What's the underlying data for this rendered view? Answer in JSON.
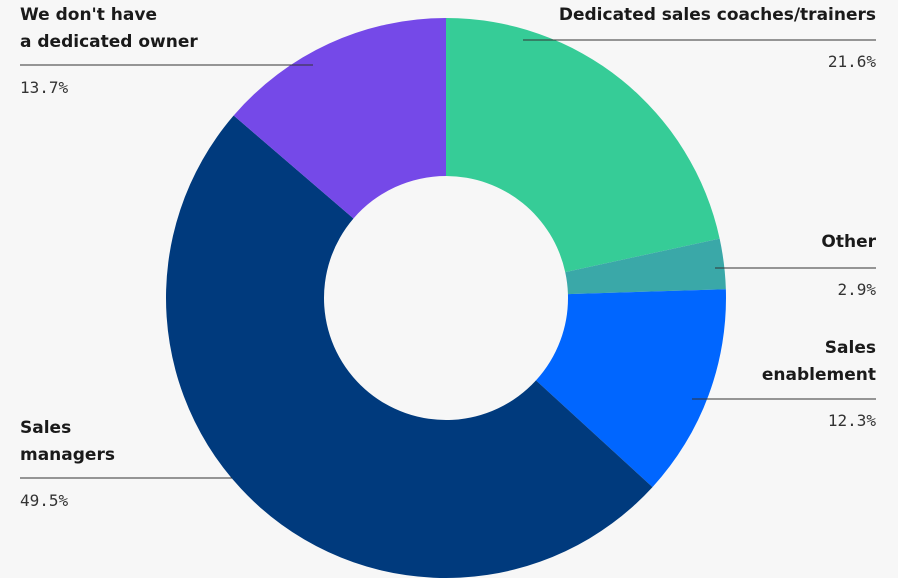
{
  "chart_data": {
    "type": "donut",
    "categories": [
      "Dedicated sales coaches/trainers",
      "Other",
      "Sales\nenablement",
      "Sales\nmanagers",
      "We don't have\na dedicated owner"
    ],
    "values": [
      21.6,
      2.9,
      12.3,
      49.5,
      13.7
    ],
    "value_labels": [
      "21.6%",
      "2.9%",
      "12.3%",
      "49.5%",
      "13.7%"
    ],
    "colors": [
      "#36cc97",
      "#3aa8a8",
      "#0066ff",
      "#003a7d",
      "#7549e8"
    ]
  }
}
